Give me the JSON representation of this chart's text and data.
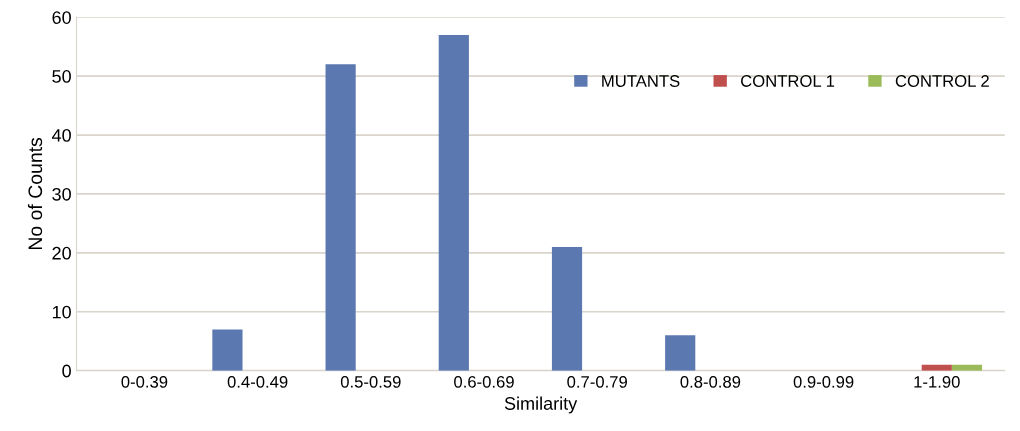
{
  "chart_data": {
    "type": "bar",
    "xlabel": "Similarity",
    "ylabel": "No of Counts",
    "categories": [
      "0-0.39",
      "0.4-0.49",
      "0.5-0.59",
      "0.6-0.69",
      "0.7-0.79",
      "0.8-0.89",
      "0.9-0.99",
      "1-1.90"
    ],
    "series": [
      {
        "name": "MUTANTS",
        "color": "#5b78b0",
        "values": [
          0,
          7,
          52,
          57,
          21,
          6,
          0,
          0
        ]
      },
      {
        "name": "CONTROL 1",
        "color": "#c0504d",
        "values": [
          0,
          0,
          0,
          0,
          0,
          0,
          0,
          1
        ]
      },
      {
        "name": "CONTROL 2",
        "color": "#9bbb59",
        "values": [
          0,
          0,
          0,
          0,
          0,
          0,
          0,
          1
        ]
      }
    ],
    "ylim": [
      0,
      60
    ],
    "yticks": [
      0,
      10,
      20,
      30,
      40,
      50,
      60
    ],
    "grid": "y",
    "legend": "top right"
  }
}
